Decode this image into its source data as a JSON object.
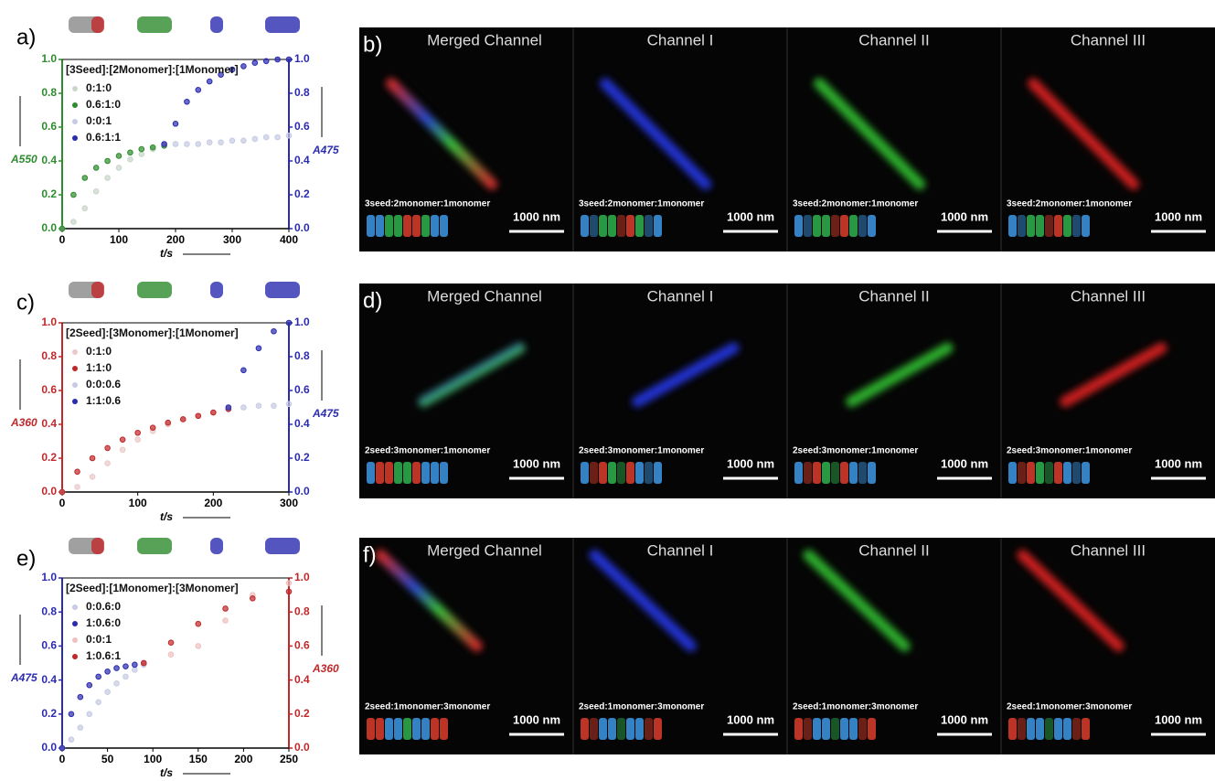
{
  "chart_data": [
    {
      "type": "scatter",
      "panel_label": "a)",
      "legend_title": "[3Seed]:[2Monomer]:[1Monomer]",
      "x_label": "t/s",
      "y_label": "A550",
      "y2_label": "A475",
      "y_color": "#2e8b2e",
      "y2_color": "#2b2bb0",
      "x": [
        0,
        20,
        40,
        60,
        80,
        100,
        120,
        140,
        160,
        180,
        200,
        220,
        240,
        260,
        280,
        300,
        320,
        340,
        360,
        380,
        400
      ],
      "xlim": [
        0,
        400
      ],
      "xticks": [
        0,
        100,
        200,
        300,
        400
      ],
      "ylim": [
        0,
        1
      ],
      "yticks": [
        {
          "value": 0,
          "label": "0.0"
        },
        0.2,
        0.4,
        0.6,
        0.8,
        {
          "value": 1,
          "label": "1.0"
        }
      ],
      "y2lim": [
        0,
        1
      ],
      "y2ticks": [
        {
          "value": 0,
          "label": "0.0"
        },
        0.2,
        0.4,
        0.6,
        0.8,
        {
          "value": 1,
          "label": "1.0"
        }
      ],
      "series": [
        {
          "name": "0:1:0",
          "color": "#c9d6c9",
          "values": [
            0,
            0.04,
            0.12,
            0.22,
            0.3,
            0.36,
            0.41,
            0.44,
            0.47,
            0.49,
            null,
            null,
            null,
            null,
            null,
            null,
            null,
            null,
            null,
            null,
            null
          ]
        },
        {
          "name": "0.6:1:0",
          "color": "#2e8b2e",
          "values": [
            0,
            0.2,
            0.3,
            0.36,
            0.4,
            0.43,
            0.45,
            0.47,
            0.48,
            0.49,
            null,
            null,
            null,
            null,
            null,
            null,
            null,
            null,
            null,
            null,
            null
          ]
        },
        {
          "name": "0:0:1",
          "color": "#c6cbe3",
          "axis": "y2",
          "values": [
            null,
            null,
            null,
            null,
            null,
            null,
            null,
            null,
            null,
            0.5,
            0.5,
            0.5,
            0.5,
            0.51,
            0.51,
            0.52,
            0.52,
            0.53,
            0.54,
            0.54,
            0.55
          ]
        },
        {
          "name": "0.6:1:1",
          "color": "#2b2bb0",
          "axis": "y2",
          "values": [
            null,
            null,
            null,
            null,
            null,
            null,
            null,
            null,
            null,
            0.5,
            0.62,
            0.75,
            0.82,
            0.87,
            0.91,
            0.94,
            0.96,
            0.98,
            0.99,
            1,
            1
          ]
        }
      ]
    },
    {
      "type": "scatter",
      "panel_label": "c)",
      "legend_title": "[2Seed]:[3Monomer]:[1Monomer]",
      "x_label": "t/s",
      "y_label": "A360",
      "y2_label": "A475",
      "y_color": "#c0282a",
      "y2_color": "#2b2bb0",
      "x": [
        0,
        20,
        40,
        60,
        80,
        100,
        120,
        140,
        160,
        180,
        200,
        220,
        240,
        260,
        280,
        300
      ],
      "xlim": [
        0,
        300
      ],
      "xticks": [
        0,
        100,
        200,
        300
      ],
      "ylim": [
        0,
        1
      ],
      "yticks": [
        {
          "value": 0,
          "label": "0.0"
        },
        0.2,
        0.4,
        0.6,
        0.8,
        {
          "value": 1,
          "label": "1.0"
        }
      ],
      "y2lim": [
        0,
        1
      ],
      "y2ticks": [
        {
          "value": 0,
          "label": "0.0"
        },
        0.2,
        0.4,
        0.6,
        0.8,
        {
          "value": 1,
          "label": "1.0"
        }
      ],
      "series": [
        {
          "name": "0:1:0",
          "color": "#ecc9c9",
          "values": [
            0,
            0.03,
            0.09,
            0.17,
            0.25,
            0.31,
            0.36,
            0.4,
            0.43,
            0.45,
            0.47,
            0.49,
            null,
            null,
            null,
            null
          ]
        },
        {
          "name": "1:1:0",
          "color": "#c0282a",
          "values": [
            0,
            0.12,
            0.2,
            0.26,
            0.31,
            0.35,
            0.38,
            0.41,
            0.43,
            0.45,
            0.47,
            0.49,
            null,
            null,
            null,
            null
          ]
        },
        {
          "name": "0:0:0.6",
          "color": "#c6cbe3",
          "axis": "y2",
          "values": [
            null,
            null,
            null,
            null,
            null,
            null,
            null,
            null,
            null,
            null,
            null,
            0.5,
            0.5,
            0.51,
            0.51,
            0.52
          ]
        },
        {
          "name": "1:1:0.6",
          "color": "#2b2bb0",
          "axis": "y2",
          "values": [
            null,
            null,
            null,
            null,
            null,
            null,
            null,
            null,
            null,
            null,
            null,
            0.5,
            0.72,
            0.85,
            0.95,
            1
          ]
        }
      ]
    },
    {
      "type": "scatter",
      "panel_label": "e)",
      "legend_title": "[2Seed]:[1Monomer]:[3Monomer]",
      "x_label": "t/s",
      "y_label": "A475",
      "y2_label": "A360",
      "y_color": "#2b2bb0",
      "y2_color": "#c0282a",
      "x": [
        0,
        10,
        20,
        30,
        40,
        50,
        60,
        70,
        80,
        90,
        120,
        150,
        180,
        210,
        250
      ],
      "xlim": [
        0,
        250
      ],
      "xticks": [
        0,
        50,
        100,
        150,
        200,
        250
      ],
      "ylim": [
        0,
        1
      ],
      "yticks": [
        {
          "value": 0,
          "label": "0.0"
        },
        0.2,
        0.4,
        0.6,
        0.8,
        {
          "value": 1,
          "label": "1.0"
        }
      ],
      "y2lim": [
        0,
        1
      ],
      "y2ticks": [
        {
          "value": 0,
          "label": "0.0"
        },
        0.2,
        0.4,
        0.6,
        0.8,
        {
          "value": 1,
          "label": "1.0"
        }
      ],
      "series": [
        {
          "name": "0:0.6:0",
          "color": "#c6cbe3",
          "values": [
            0,
            0.05,
            0.12,
            0.2,
            0.27,
            0.33,
            0.38,
            0.42,
            0.46,
            0.49,
            null,
            null,
            null,
            null,
            null
          ]
        },
        {
          "name": "1:0.6:0",
          "color": "#2b2bb0",
          "values": [
            0,
            0.2,
            0.3,
            0.37,
            0.42,
            0.45,
            0.47,
            0.48,
            0.49,
            0.5,
            null,
            null,
            null,
            null,
            null
          ]
        },
        {
          "name": "0:0:1",
          "color": "#f0c0c0",
          "axis": "y2",
          "values": [
            null,
            null,
            null,
            null,
            null,
            null,
            null,
            null,
            null,
            0.5,
            0.55,
            0.6,
            0.75,
            0.9,
            0.97
          ]
        },
        {
          "name": "1:0.6:1",
          "color": "#c0282a",
          "axis": "y2",
          "values": [
            null,
            null,
            null,
            null,
            null,
            null,
            null,
            null,
            null,
            0.5,
            0.62,
            0.73,
            0.82,
            0.88,
            0.92
          ]
        }
      ]
    }
  ],
  "images": [
    {
      "panel_label": "b)",
      "scale_bar": "1000 nm",
      "channels": [
        {
          "title": "Merged Channel",
          "ratio": "3seed:2monomer:1monomer"
        },
        {
          "title": "Channel I",
          "ratio": "3seed:2monomer:1monomer"
        },
        {
          "title": "Channel II",
          "ratio": "3seed:2monomer:1monomer"
        },
        {
          "title": "Channel III",
          "ratio": "3seed:2monomer:1monomer"
        }
      ]
    },
    {
      "panel_label": "d)",
      "scale_bar": "1000 nm",
      "channels": [
        {
          "title": "Merged Channel",
          "ratio": "2seed:3monomer:1monomer"
        },
        {
          "title": "Channel I",
          "ratio": "2seed:3monomer:1monomer"
        },
        {
          "title": "Channel II",
          "ratio": "2seed:3monomer:1monomer"
        },
        {
          "title": "Channel III",
          "ratio": "2seed:3monomer:1monomer"
        }
      ]
    },
    {
      "panel_label": "f)",
      "scale_bar": "1000 nm",
      "channels": [
        {
          "title": "Merged Channel",
          "ratio": "2seed:1monomer:3monomer"
        },
        {
          "title": "Channel I",
          "ratio": "2seed:1monomer:3monomer"
        },
        {
          "title": "Channel II",
          "ratio": "2seed:1monomer:3monomer"
        },
        {
          "title": "Channel III",
          "ratio": "2seed:1monomer:3monomer"
        }
      ]
    }
  ]
}
